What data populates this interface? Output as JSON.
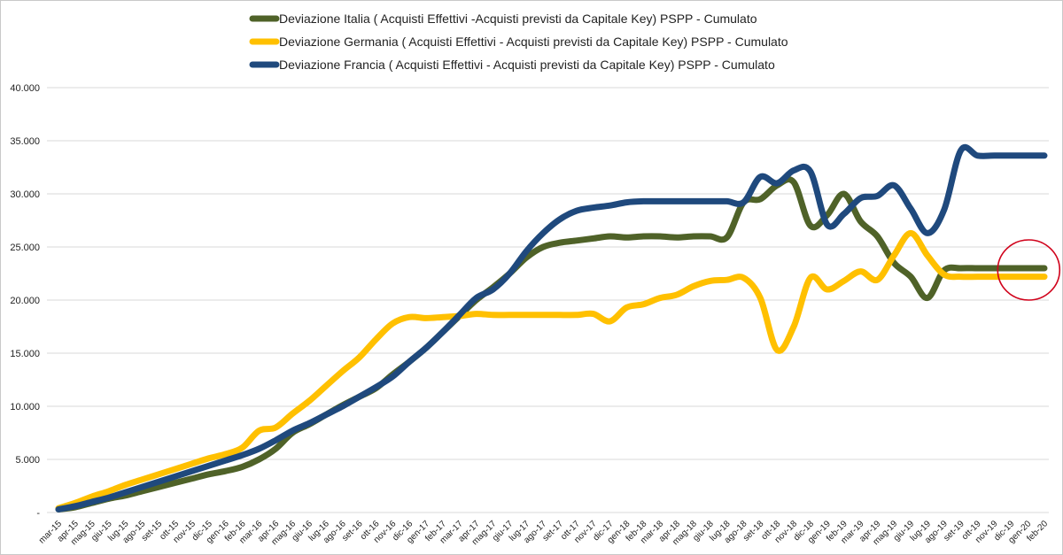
{
  "chart_data": {
    "type": "line",
    "title": "",
    "xlabel": "",
    "ylabel": "",
    "ylim": [
      0,
      40000
    ],
    "yticks": [
      0,
      5000,
      10000,
      15000,
      20000,
      25000,
      30000,
      35000,
      40000
    ],
    "ytick_labels": [
      "-",
      "5.000",
      "10.000",
      "15.000",
      "20.000",
      "25.000",
      "30.000",
      "35.000",
      "40.000"
    ],
    "grid": "horizontal",
    "legend_position": "top",
    "categories": [
      "mar-15",
      "apr-15",
      "mag-15",
      "giu-15",
      "lug-15",
      "ago-15",
      "set-15",
      "ott-15",
      "nov-15",
      "dic-15",
      "gen-16",
      "feb-16",
      "mar-16",
      "apr-16",
      "mag-16",
      "giu-16",
      "lug-16",
      "ago-16",
      "set-16",
      "ott-16",
      "nov-16",
      "dic-16",
      "gen-17",
      "feb-17",
      "mar-17",
      "apr-17",
      "mag-17",
      "giu-17",
      "lug-17",
      "ago-17",
      "set-17",
      "ott-17",
      "nov-17",
      "dic-17",
      "gen-18",
      "feb-18",
      "mar-18",
      "apr-18",
      "mag-18",
      "giu-18",
      "lug-18",
      "ago-18",
      "set-18",
      "ott-18",
      "nov-18",
      "dic-18",
      "gen-19",
      "feb-19",
      "mar-19",
      "apr-19",
      "mag-19",
      "giu-19",
      "lug-19",
      "ago-19",
      "set-19",
      "ott-19",
      "nov-19",
      "dic-19",
      "gen-20",
      "feb-20"
    ],
    "series": [
      {
        "name": "Deviazione Italia ( Acquisti Effettivi -Acquisti previsti da Capitale Key) PSPP - Cumulato",
        "color": "#4f6228",
        "values": [
          300,
          500,
          900,
          1300,
          1600,
          2000,
          2400,
          2800,
          3200,
          3600,
          3900,
          4300,
          5000,
          6000,
          7500,
          8300,
          9200,
          10100,
          10900,
          11700,
          13000,
          14200,
          15500,
          17000,
          18500,
          20000,
          21200,
          22500,
          24000,
          25000,
          25400,
          25600,
          25800,
          26000,
          25900,
          26000,
          26000,
          25900,
          26000,
          26000,
          25900,
          29200,
          29500,
          30800,
          31100,
          27000,
          28000,
          30000,
          27400,
          26000,
          23500,
          22200,
          20200,
          22800,
          23000,
          23000,
          23000,
          23000,
          23000,
          23000
        ]
      },
      {
        "name": "Deviazione Germania  ( Acquisti Effettivi - Acquisti previsti da Capitale Key) PSPP - Cumulato",
        "color": "#ffc000",
        "values": [
          400,
          900,
          1500,
          2000,
          2600,
          3100,
          3600,
          4100,
          4600,
          5100,
          5500,
          6100,
          7700,
          8000,
          9300,
          10500,
          11900,
          13300,
          14600,
          16300,
          17800,
          18400,
          18300,
          18400,
          18500,
          18700,
          18600,
          18600,
          18600,
          18600,
          18600,
          18600,
          18700,
          18000,
          19300,
          19600,
          20200,
          20500,
          21300,
          21800,
          21900,
          22100,
          20200,
          15300,
          17500,
          22100,
          21000,
          21800,
          22700,
          21900,
          24200,
          26300,
          24200,
          22400,
          22200,
          22200,
          22200,
          22200,
          22200,
          22200
        ]
      },
      {
        "name": "Deviazione Francia  ( Acquisti Effettivi - Acquisti previsti da Capitale Key) PSPP - Cumulato",
        "color": "#1f497d",
        "values": [
          300,
          600,
          1000,
          1400,
          1900,
          2400,
          2900,
          3400,
          3900,
          4400,
          4900,
          5400,
          6000,
          6800,
          7700,
          8400,
          9200,
          10000,
          10900,
          11800,
          12800,
          14200,
          15500,
          17000,
          18600,
          20200,
          21000,
          22500,
          24600,
          26300,
          27600,
          28400,
          28700,
          28900,
          29200,
          29300,
          29300,
          29300,
          29300,
          29300,
          29300,
          29200,
          31600,
          31000,
          32200,
          32100,
          27100,
          28100,
          29600,
          29800,
          30800,
          28600,
          26300,
          28500,
          34100,
          33600,
          33600,
          33600,
          33600,
          33600
        ]
      }
    ]
  },
  "annotation": {
    "shape": "ellipse",
    "color": "#d0021b"
  }
}
